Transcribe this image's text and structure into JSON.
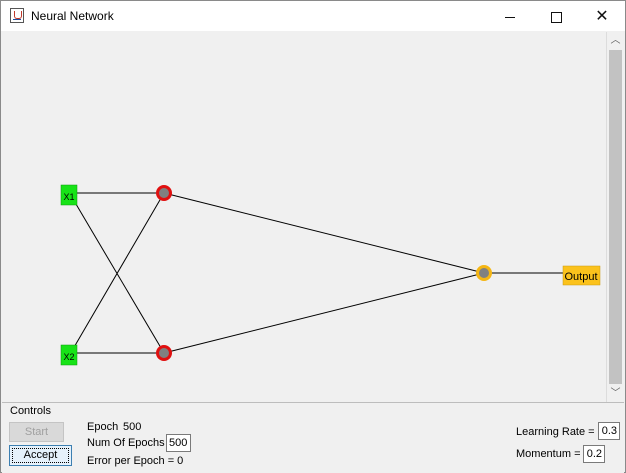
{
  "window": {
    "title": "Neural Network"
  },
  "network": {
    "inputs": [
      "X1",
      "X2"
    ],
    "output": "Output",
    "colors": {
      "input_fill": "#17e317",
      "hidden_ring": "#e01010",
      "output_node_ring": "#f5b614",
      "output_label_fill": "#fbc21c",
      "node_center": "#808080",
      "edge": "#000000"
    }
  },
  "controls": {
    "legend": "Controls",
    "start_label": "Start",
    "accept_label": "Accept",
    "epoch_label": "Epoch",
    "epoch_value": "500",
    "num_epochs_label": "Num Of Epochs",
    "num_epochs_value": "500",
    "error_label": "Error per Epoch = 0",
    "learning_rate_label": "Learning Rate =",
    "learning_rate_value": "0.3",
    "momentum_label": "Momentum =",
    "momentum_value": "0.2"
  }
}
